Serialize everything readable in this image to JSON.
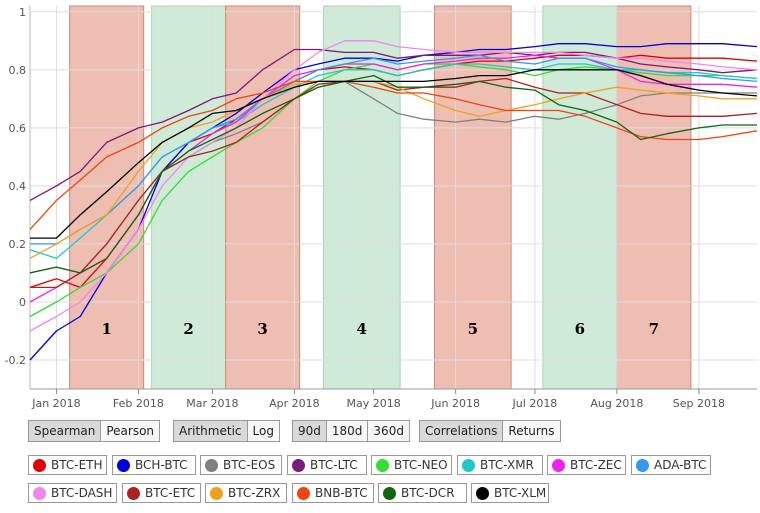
{
  "controls": {
    "method": [
      "Spearman",
      "Pearson"
    ],
    "scale": [
      "Arithmetic",
      "Log"
    ],
    "window": [
      "90d",
      "180d",
      "360d"
    ],
    "view": [
      "Correlations",
      "Returns"
    ]
  },
  "legend": [
    {
      "label": "BTC-ETH",
      "color": "#e00000"
    },
    {
      "label": "BCH-BTC",
      "color": "#0000dd"
    },
    {
      "label": "BTC-EOS",
      "color": "#808080"
    },
    {
      "label": "BTC-LTC",
      "color": "#7a1a7a"
    },
    {
      "label": "BTC-NEO",
      "color": "#33dd33"
    },
    {
      "label": "BTC-XMR",
      "color": "#20c8c8"
    },
    {
      "label": "BTC-ZEC",
      "color": "#ee22ee"
    },
    {
      "label": "ADA-BTC",
      "color": "#3399ee"
    },
    {
      "label": "BTC-DASH",
      "color": "#ee88ee"
    },
    {
      "label": "BTC-ETC",
      "color": "#aa2222"
    },
    {
      "label": "BTC-ZRX",
      "color": "#f0a020"
    },
    {
      "label": "BNB-BTC",
      "color": "#ee4411"
    },
    {
      "label": "BTC-DCR",
      "color": "#116611"
    },
    {
      "label": "BTC-XLM",
      "color": "#000000"
    }
  ],
  "chart_data": {
    "type": "line",
    "x_ticks": [
      "Jan 2018",
      "Feb 2018",
      "Mar 2018",
      "Apr 2018",
      "May 2018",
      "Jun 2018",
      "Jul 2018",
      "Aug 2018",
      "Sep 2018"
    ],
    "y_ticks": [
      "1",
      "0.8",
      "0.6",
      "0.4",
      "0.2",
      "0",
      "-0.2"
    ],
    "ylim": [
      -0.3,
      1.02
    ],
    "xlim": [
      "2017-12-22",
      "2018-09-23"
    ],
    "grid": true,
    "bands": [
      {
        "label": "1",
        "start": "2018-01-06",
        "end": "2018-02-03",
        "color": "#e8a898"
      },
      {
        "label": "2",
        "start": "2018-02-06",
        "end": "2018-03-06",
        "color": "#bfe3c9"
      },
      {
        "label": "3",
        "start": "2018-03-06",
        "end": "2018-04-03",
        "color": "#e8a898"
      },
      {
        "label": "4",
        "start": "2018-04-12",
        "end": "2018-05-11",
        "color": "#bfe3c9"
      },
      {
        "label": "5",
        "start": "2018-05-24",
        "end": "2018-06-22",
        "color": "#e8a898"
      },
      {
        "label": "6",
        "start": "2018-07-04",
        "end": "2018-08-01",
        "color": "#bfe3c9"
      },
      {
        "label": "7",
        "start": "2018-08-01",
        "end": "2018-08-29",
        "color": "#e8a898"
      }
    ],
    "x": [
      "2017-12-22",
      "2018-01-01",
      "2018-01-10",
      "2018-01-20",
      "2018-02-01",
      "2018-02-10",
      "2018-02-20",
      "2018-03-01",
      "2018-03-10",
      "2018-03-20",
      "2018-04-01",
      "2018-04-10",
      "2018-04-20",
      "2018-05-01",
      "2018-05-10",
      "2018-05-20",
      "2018-06-01",
      "2018-06-10",
      "2018-06-20",
      "2018-07-01",
      "2018-07-10",
      "2018-07-20",
      "2018-08-01",
      "2018-08-10",
      "2018-08-20",
      "2018-09-01",
      "2018-09-10",
      "2018-09-23"
    ],
    "series": [
      {
        "name": "BTC-ETH",
        "color": "#e00000",
        "values": [
          0.05,
          0.08,
          0.05,
          0.15,
          0.3,
          0.45,
          0.55,
          0.58,
          0.63,
          0.7,
          0.76,
          0.8,
          0.81,
          0.8,
          0.78,
          0.8,
          0.82,
          0.83,
          0.83,
          0.84,
          0.85,
          0.85,
          0.84,
          0.85,
          0.84,
          0.84,
          0.84,
          0.83
        ]
      },
      {
        "name": "BCH-BTC",
        "color": "#0000dd",
        "values": [
          -0.2,
          -0.1,
          -0.05,
          0.1,
          0.25,
          0.45,
          0.55,
          0.6,
          0.65,
          0.72,
          0.8,
          0.82,
          0.84,
          0.84,
          0.83,
          0.85,
          0.86,
          0.87,
          0.87,
          0.88,
          0.89,
          0.89,
          0.88,
          0.88,
          0.89,
          0.89,
          0.89,
          0.88
        ]
      },
      {
        "name": "BTC-EOS",
        "color": "#808080",
        "values": [
          0.1,
          0.12,
          0.1,
          0.2,
          0.35,
          0.45,
          0.5,
          0.55,
          0.58,
          0.62,
          0.7,
          0.74,
          0.76,
          0.7,
          0.65,
          0.63,
          0.62,
          0.63,
          0.62,
          0.64,
          0.63,
          0.65,
          0.68,
          0.71,
          0.72,
          0.72,
          0.72,
          0.72
        ]
      },
      {
        "name": "BTC-LTC",
        "color": "#7a1a7a",
        "values": [
          0.35,
          0.4,
          0.45,
          0.55,
          0.6,
          0.62,
          0.66,
          0.7,
          0.72,
          0.8,
          0.87,
          0.87,
          0.86,
          0.86,
          0.84,
          0.85,
          0.85,
          0.85,
          0.86,
          0.85,
          0.86,
          0.86,
          0.84,
          0.82,
          0.81,
          0.8,
          0.79,
          0.8
        ]
      },
      {
        "name": "BTC-NEO",
        "color": "#33dd33",
        "values": [
          -0.05,
          0.0,
          0.05,
          0.1,
          0.2,
          0.35,
          0.45,
          0.5,
          0.55,
          0.6,
          0.7,
          0.76,
          0.8,
          0.82,
          0.8,
          0.82,
          0.82,
          0.81,
          0.8,
          0.78,
          0.8,
          0.81,
          0.8,
          0.79,
          0.78,
          0.78,
          0.78,
          0.77
        ]
      },
      {
        "name": "BTC-XMR",
        "color": "#20c8c8",
        "values": [
          0.18,
          0.15,
          0.22,
          0.3,
          0.4,
          0.5,
          0.55,
          0.6,
          0.62,
          0.68,
          0.74,
          0.78,
          0.8,
          0.8,
          0.78,
          0.8,
          0.82,
          0.82,
          0.81,
          0.8,
          0.82,
          0.82,
          0.8,
          0.8,
          0.79,
          0.79,
          0.78,
          0.77
        ]
      },
      {
        "name": "BTC-ZEC",
        "color": "#ee22ee",
        "values": [
          0.0,
          0.05,
          0.1,
          0.15,
          0.3,
          0.45,
          0.52,
          0.58,
          0.62,
          0.7,
          0.78,
          0.8,
          0.82,
          0.82,
          0.8,
          0.82,
          0.83,
          0.84,
          0.84,
          0.85,
          0.84,
          0.84,
          0.8,
          0.76,
          0.75,
          0.75,
          0.75,
          0.74
        ]
      },
      {
        "name": "ADA-BTC",
        "color": "#3399ee",
        "values": [
          0.2,
          0.2,
          0.25,
          0.3,
          0.4,
          0.5,
          0.55,
          0.6,
          0.63,
          0.7,
          0.76,
          0.8,
          0.82,
          0.84,
          0.82,
          0.83,
          0.84,
          0.85,
          0.83,
          0.82,
          0.84,
          0.84,
          0.81,
          0.8,
          0.79,
          0.78,
          0.77,
          0.76
        ]
      },
      {
        "name": "BTC-DASH",
        "color": "#ee88ee",
        "values": [
          -0.1,
          -0.05,
          0.0,
          0.1,
          0.25,
          0.4,
          0.5,
          0.55,
          0.6,
          0.7,
          0.8,
          0.86,
          0.9,
          0.9,
          0.88,
          0.87,
          0.86,
          0.86,
          0.86,
          0.86,
          0.86,
          0.85,
          0.84,
          0.84,
          0.83,
          0.82,
          0.81,
          0.8
        ]
      },
      {
        "name": "BTC-ETC",
        "color": "#aa2222",
        "values": [
          0.05,
          0.05,
          0.1,
          0.2,
          0.35,
          0.45,
          0.5,
          0.52,
          0.55,
          0.62,
          0.7,
          0.75,
          0.76,
          0.76,
          0.73,
          0.74,
          0.74,
          0.76,
          0.77,
          0.74,
          0.72,
          0.72,
          0.68,
          0.65,
          0.64,
          0.64,
          0.64,
          0.65
        ]
      },
      {
        "name": "BTC-ZRX",
        "color": "#f0a020",
        "values": [
          0.15,
          0.2,
          0.25,
          0.3,
          0.45,
          0.55,
          0.6,
          0.62,
          0.66,
          0.7,
          0.75,
          0.76,
          0.76,
          0.76,
          0.74,
          0.7,
          0.66,
          0.64,
          0.66,
          0.68,
          0.7,
          0.72,
          0.74,
          0.73,
          0.72,
          0.71,
          0.7,
          0.7
        ]
      },
      {
        "name": "BNB-BTC",
        "color": "#ee4411",
        "values": [
          0.25,
          0.35,
          0.42,
          0.5,
          0.55,
          0.6,
          0.64,
          0.66,
          0.7,
          0.72,
          0.76,
          0.76,
          0.76,
          0.74,
          0.72,
          0.72,
          0.7,
          0.68,
          0.66,
          0.66,
          0.66,
          0.64,
          0.6,
          0.57,
          0.56,
          0.56,
          0.57,
          0.59
        ]
      },
      {
        "name": "BTC-DCR",
        "color": "#116611",
        "values": [
          0.1,
          0.12,
          0.1,
          0.15,
          0.3,
          0.45,
          0.52,
          0.56,
          0.6,
          0.65,
          0.7,
          0.74,
          0.76,
          0.78,
          0.74,
          0.74,
          0.75,
          0.76,
          0.74,
          0.73,
          0.68,
          0.66,
          0.62,
          0.56,
          0.58,
          0.6,
          0.61,
          0.61
        ]
      },
      {
        "name": "BTC-XLM",
        "color": "#000000",
        "values": [
          0.22,
          0.22,
          0.3,
          0.38,
          0.48,
          0.55,
          0.6,
          0.65,
          0.66,
          0.7,
          0.74,
          0.76,
          0.76,
          0.76,
          0.76,
          0.76,
          0.77,
          0.78,
          0.78,
          0.8,
          0.8,
          0.8,
          0.8,
          0.78,
          0.75,
          0.73,
          0.72,
          0.71
        ]
      }
    ]
  }
}
